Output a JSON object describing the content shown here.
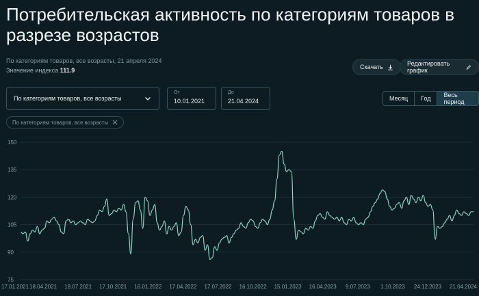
{
  "header": {
    "title": "Потребительская активность по категориям товаров в разрезе возрастов",
    "subtitle": "По категориям товаров, все возрасты, 21 апреля 2024",
    "index_label": "Значение индекса",
    "index_value": "111.9"
  },
  "toolbar": {
    "download_label": "Скачать",
    "edit_label": "Редактировать график"
  },
  "filters": {
    "category_select_value": "По категориям товаров, все возрасты",
    "from_label": "От",
    "from_value": "10.01.2021",
    "to_label": "До",
    "to_value": "21.04.2024",
    "period_options": [
      "Месяц",
      "Год",
      "Весь период"
    ],
    "period_selected": "Весь период",
    "active_chip": "По категориям товаров, все возрасты"
  },
  "icons": {
    "download": "download-icon",
    "edit": "pencil-icon",
    "dropdown": "chevron-down-icon",
    "chip_close": "close-icon"
  },
  "colors": {
    "background": "#0d1b22",
    "line": "#8fd6c2",
    "grid": "#1f3038"
  },
  "chart_data": {
    "type": "line",
    "ylim": [
      75,
      150
    ],
    "yticks": [
      75,
      90,
      105,
      120,
      135,
      150
    ],
    "x_tick_labels": [
      "17.01.2021",
      "18.04.2021",
      "18.07.2021",
      "17.10.2021",
      "16.01.2022",
      "17.04.2022",
      "17.07.2022",
      "16.10.2022",
      "15.01.2023",
      "16.04.2023",
      "9.07.2023",
      "1.10.2023",
      "24.12.2023",
      "21.04.2024"
    ],
    "grid": true,
    "series": [
      {
        "values": [
          101,
          100,
          101,
          96,
          100,
          102,
          101,
          104,
          100,
          102,
          103,
          107,
          106,
          108,
          109,
          107,
          105,
          101,
          100,
          107,
          108,
          106,
          107,
          105,
          106,
          107,
          106,
          105,
          108,
          107,
          106,
          107,
          110,
          113,
          112,
          115,
          119,
          110,
          111,
          113,
          112,
          114,
          113,
          116,
          112,
          100,
          89,
          108,
          117,
          118,
          113,
          103,
          120,
          118,
          110,
          113,
          116,
          106,
          102,
          104,
          107,
          100,
          104,
          102,
          104,
          106,
          99,
          101,
          110,
          115,
          113,
          105,
          94,
          97,
          95,
          98,
          99,
          91,
          94,
          86,
          87,
          93,
          91,
          95,
          97,
          98,
          99,
          95,
          98,
          100,
          102,
          103,
          106,
          104,
          103,
          106,
          108,
          107,
          104,
          103,
          106,
          108,
          107,
          105,
          108,
          113,
          118,
          130,
          143,
          145,
          138,
          134,
          135,
          134,
          108,
          97,
          102,
          101,
          100,
          103,
          102,
          104,
          103,
          107,
          110,
          111,
          109,
          108,
          112,
          110,
          109,
          108,
          109,
          107,
          109,
          106,
          105,
          108,
          107,
          109,
          106,
          105,
          106,
          105,
          108,
          109,
          112,
          115,
          117,
          119,
          122,
          124,
          123,
          119,
          115,
          113,
          114,
          116,
          117,
          114,
          118,
          120,
          116,
          121,
          119,
          117,
          120,
          118,
          121,
          117,
          115,
          116,
          113,
          97,
          104,
          103,
          104,
          106,
          108,
          110,
          107,
          110,
          113,
          111,
          110,
          112,
          111,
          110,
          112,
          112
        ]
      }
    ]
  }
}
